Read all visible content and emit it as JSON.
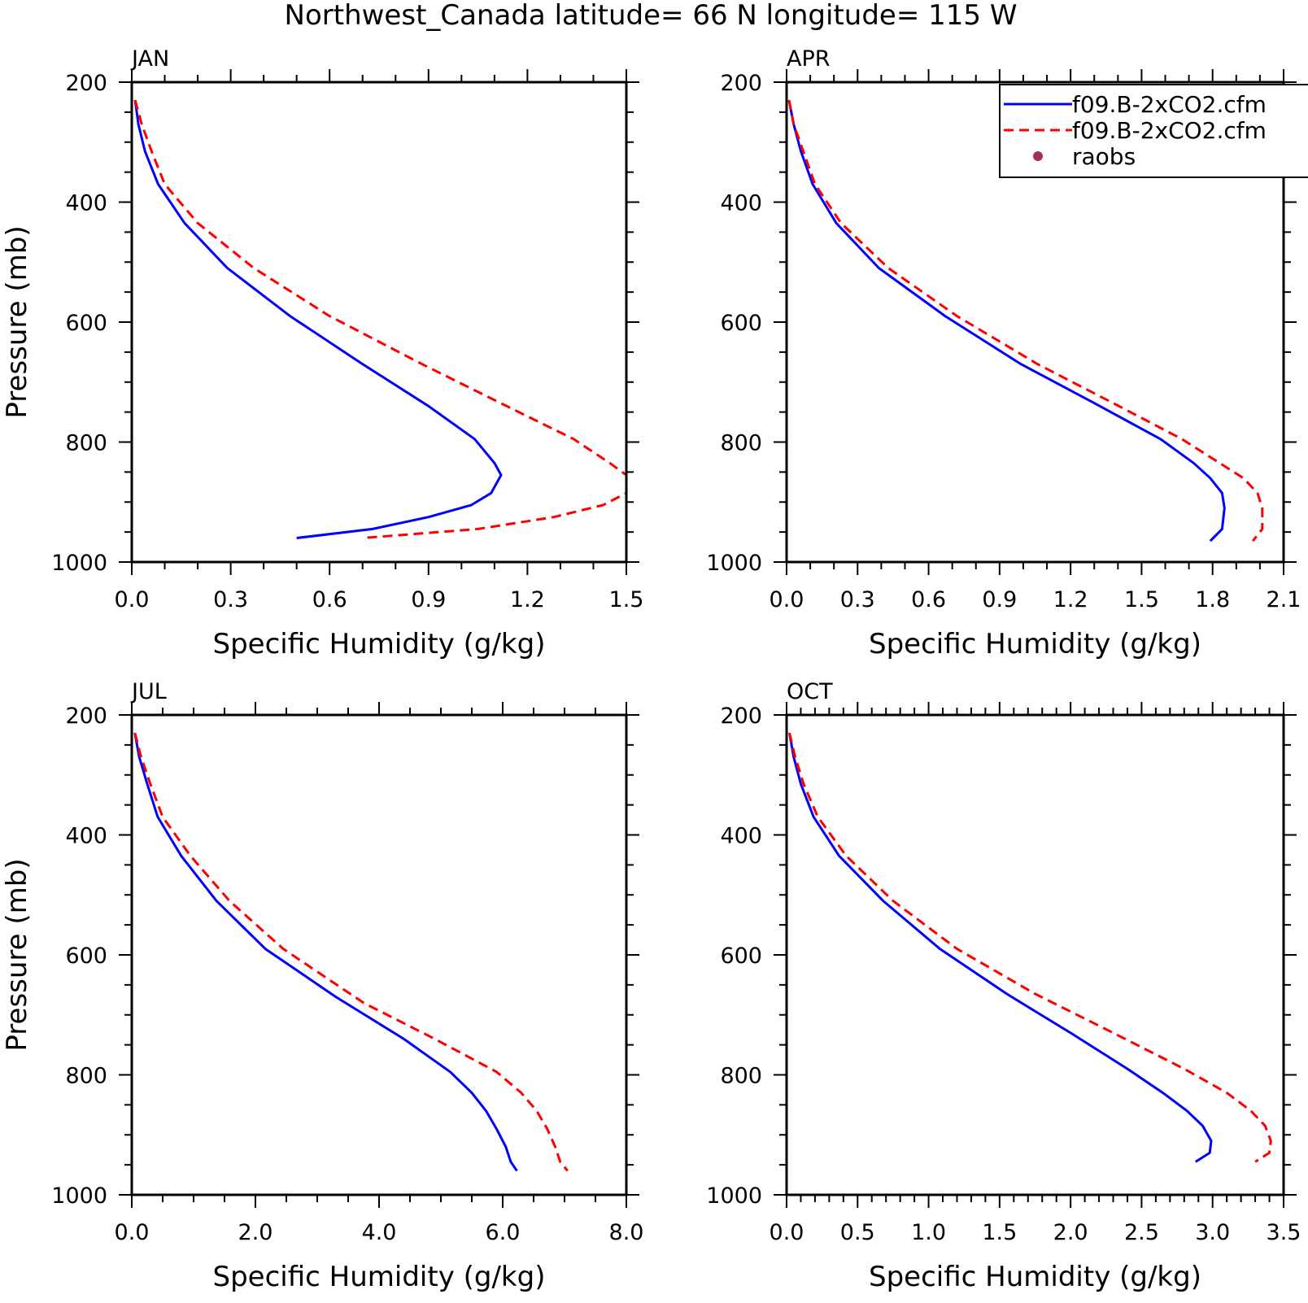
{
  "figure": {
    "title": "Northwest_Canada  latitude= 66 N longitude= 115 W"
  },
  "legend": {
    "entries": [
      {
        "label": "f09.B-2xCO2.cfm",
        "color": "#0000ff",
        "style": "solid"
      },
      {
        "label": "f09.B-2xCO2.cfm",
        "color": "#ff0000",
        "style": "dashed"
      },
      {
        "label": "raobs",
        "color": "#a0305a",
        "style": "marker"
      }
    ]
  },
  "chart_data": [
    {
      "type": "line",
      "panel_label": "JAN",
      "xlabel": "Specific Humidity (g/kg)",
      "ylabel": "Pressure (mb)",
      "xlim": [
        0,
        1.5
      ],
      "ylim": [
        200,
        1000
      ],
      "y_inverted": true,
      "xticks": [
        "0.0",
        "0.3",
        "0.6",
        "0.9",
        "1.2",
        "1.5"
      ],
      "yticks": [
        "200",
        "400",
        "600",
        "800",
        "1000"
      ],
      "x_minor_step": 0.1,
      "y_minor_step": 50,
      "series": [
        {
          "color": "#0000ff",
          "style": "solid",
          "points": [
            [
              0.01,
              230
            ],
            [
              0.02,
              270
            ],
            [
              0.04,
              315
            ],
            [
              0.08,
              370
            ],
            [
              0.16,
              435
            ],
            [
              0.29,
              510
            ],
            [
              0.48,
              590
            ],
            [
              0.7,
              670
            ],
            [
              0.9,
              740
            ],
            [
              1.04,
              795
            ],
            [
              1.1,
              835
            ],
            [
              1.12,
              855
            ],
            [
              1.09,
              885
            ],
            [
              1.03,
              905
            ],
            [
              0.9,
              925
            ],
            [
              0.73,
              945
            ],
            [
              0.5,
              960
            ]
          ]
        },
        {
          "color": "#ff0000",
          "style": "dashed",
          "points": [
            [
              0.01,
              230
            ],
            [
              0.03,
              270
            ],
            [
              0.06,
              315
            ],
            [
              0.1,
              370
            ],
            [
              0.2,
              435
            ],
            [
              0.37,
              510
            ],
            [
              0.6,
              590
            ],
            [
              0.88,
              670
            ],
            [
              1.1,
              730
            ],
            [
              1.34,
              795
            ],
            [
              1.45,
              835
            ],
            [
              1.5,
              855
            ],
            [
              1.5,
              885
            ],
            [
              1.43,
              905
            ],
            [
              1.28,
              925
            ],
            [
              1.05,
              945
            ],
            [
              0.7,
              960
            ]
          ]
        }
      ]
    },
    {
      "type": "line",
      "panel_label": "APR",
      "xlabel": "Specific Humidity (g/kg)",
      "ylabel": "",
      "xlim": [
        0,
        2.1
      ],
      "ylim": [
        200,
        1000
      ],
      "y_inverted": true,
      "xticks": [
        "0.0",
        "0.3",
        "0.6",
        "0.9",
        "1.2",
        "1.5",
        "1.8",
        "2.1"
      ],
      "yticks": [
        "200",
        "400",
        "600",
        "800",
        "1000"
      ],
      "x_minor_step": 0.1,
      "y_minor_step": 50,
      "series": [
        {
          "color": "#0000ff",
          "style": "solid",
          "points": [
            [
              0.01,
              230
            ],
            [
              0.03,
              270
            ],
            [
              0.06,
              315
            ],
            [
              0.11,
              370
            ],
            [
              0.21,
              435
            ],
            [
              0.39,
              510
            ],
            [
              0.67,
              590
            ],
            [
              0.99,
              670
            ],
            [
              1.3,
              735
            ],
            [
              1.58,
              795
            ],
            [
              1.72,
              835
            ],
            [
              1.79,
              860
            ],
            [
              1.84,
              885
            ],
            [
              1.85,
              910
            ],
            [
              1.84,
              945
            ],
            [
              1.79,
              965
            ]
          ]
        },
        {
          "color": "#ff0000",
          "style": "dashed",
          "points": [
            [
              0.01,
              230
            ],
            [
              0.03,
              270
            ],
            [
              0.07,
              315
            ],
            [
              0.12,
              370
            ],
            [
              0.23,
              435
            ],
            [
              0.43,
              510
            ],
            [
              0.72,
              590
            ],
            [
              1.06,
              670
            ],
            [
              1.38,
              735
            ],
            [
              1.67,
              795
            ],
            [
              1.83,
              835
            ],
            [
              1.93,
              860
            ],
            [
              1.99,
              885
            ],
            [
              2.01,
              910
            ],
            [
              2.01,
              945
            ],
            [
              1.97,
              965
            ]
          ]
        }
      ]
    },
    {
      "type": "line",
      "panel_label": "JUL",
      "xlabel": "Specific Humidity (g/kg)",
      "ylabel": "Pressure (mb)",
      "xlim": [
        0,
        8
      ],
      "ylim": [
        200,
        1000
      ],
      "y_inverted": true,
      "xticks": [
        "0.0",
        "2.0",
        "4.0",
        "6.0",
        "8.0"
      ],
      "yticks": [
        "200",
        "400",
        "600",
        "800",
        "1000"
      ],
      "x_minor_step": 0.5,
      "y_minor_step": 50,
      "series": [
        {
          "color": "#0000ff",
          "style": "solid",
          "points": [
            [
              0.05,
              230
            ],
            [
              0.12,
              270
            ],
            [
              0.25,
              315
            ],
            [
              0.42,
              370
            ],
            [
              0.8,
              435
            ],
            [
              1.37,
              510
            ],
            [
              2.16,
              590
            ],
            [
              3.3,
              670
            ],
            [
              4.4,
              740
            ],
            [
              5.15,
              795
            ],
            [
              5.5,
              830
            ],
            [
              5.73,
              860
            ],
            [
              5.9,
              890
            ],
            [
              6.05,
              920
            ],
            [
              6.13,
              945
            ],
            [
              6.23,
              960
            ]
          ]
        },
        {
          "color": "#ff0000",
          "style": "dashed",
          "points": [
            [
              0.05,
              230
            ],
            [
              0.15,
              270
            ],
            [
              0.3,
              315
            ],
            [
              0.5,
              370
            ],
            [
              0.95,
              435
            ],
            [
              1.58,
              510
            ],
            [
              2.45,
              590
            ],
            [
              3.75,
              680
            ],
            [
              4.9,
              740
            ],
            [
              5.9,
              795
            ],
            [
              6.3,
              830
            ],
            [
              6.55,
              860
            ],
            [
              6.72,
              890
            ],
            [
              6.85,
              920
            ],
            [
              6.93,
              945
            ],
            [
              7.05,
              960
            ]
          ]
        }
      ]
    },
    {
      "type": "line",
      "panel_label": "OCT",
      "xlabel": "Specific Humidity (g/kg)",
      "ylabel": "",
      "xlim": [
        0,
        3.5
      ],
      "ylim": [
        200,
        1000
      ],
      "y_inverted": true,
      "xticks": [
        "0.0",
        "0.5",
        "1.0",
        "1.5",
        "2.0",
        "2.5",
        "3.0",
        "3.5"
      ],
      "yticks": [
        "200",
        "400",
        "600",
        "800",
        "1000"
      ],
      "x_minor_step": 0.1,
      "y_minor_step": 50,
      "series": [
        {
          "color": "#0000ff",
          "style": "solid",
          "points": [
            [
              0.02,
              230
            ],
            [
              0.05,
              270
            ],
            [
              0.1,
              315
            ],
            [
              0.19,
              370
            ],
            [
              0.37,
              435
            ],
            [
              0.68,
              510
            ],
            [
              1.08,
              590
            ],
            [
              1.55,
              665
            ],
            [
              2.0,
              730
            ],
            [
              2.4,
              790
            ],
            [
              2.65,
              830
            ],
            [
              2.82,
              860
            ],
            [
              2.93,
              885
            ],
            [
              2.99,
              910
            ],
            [
              2.98,
              930
            ],
            [
              2.88,
              945
            ]
          ]
        },
        {
          "color": "#ff0000",
          "style": "dashed",
          "points": [
            [
              0.02,
              230
            ],
            [
              0.06,
              270
            ],
            [
              0.12,
              315
            ],
            [
              0.22,
              370
            ],
            [
              0.42,
              435
            ],
            [
              0.75,
              510
            ],
            [
              1.2,
              590
            ],
            [
              1.75,
              665
            ],
            [
              2.3,
              730
            ],
            [
              2.8,
              790
            ],
            [
              3.1,
              830
            ],
            [
              3.27,
              860
            ],
            [
              3.37,
              885
            ],
            [
              3.41,
              910
            ],
            [
              3.4,
              930
            ],
            [
              3.3,
              945
            ]
          ]
        }
      ]
    }
  ]
}
